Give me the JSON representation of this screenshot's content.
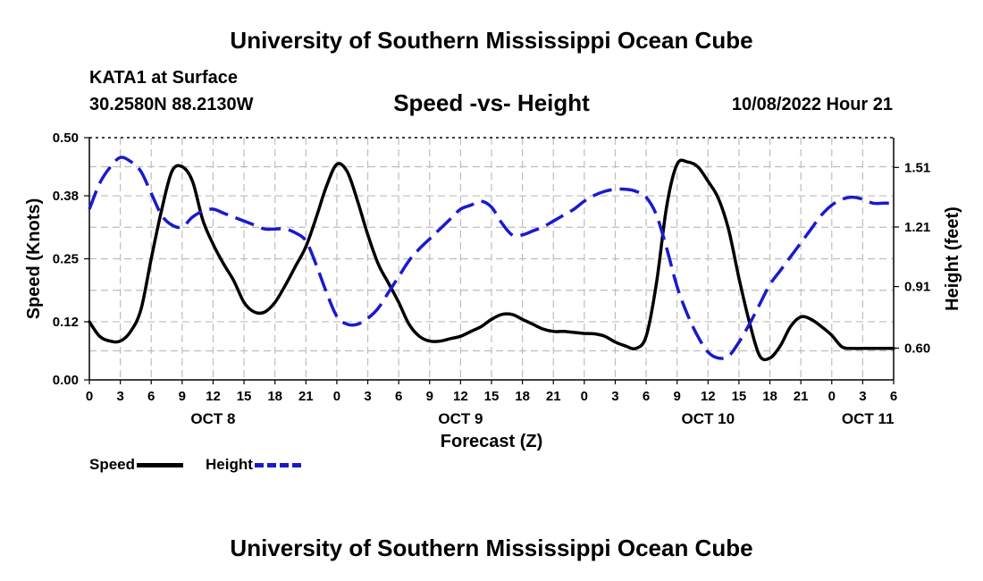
{
  "header": {
    "title": "University of Southern Mississippi Ocean Cube",
    "station": "KATA1 at Surface",
    "coordinates": "30.2580N  88.2130W",
    "subtitle": "Speed -vs- Height",
    "datetime": "10/08/2022 Hour 21"
  },
  "footer": {
    "title": "University of Southern Mississippi Ocean Cube"
  },
  "colors": {
    "speed": "#000000",
    "height": "#1a1acc",
    "grid": "#bdbdbd"
  },
  "legend": {
    "speed_label": "Speed",
    "height_label": "Height"
  },
  "chart_data": {
    "type": "line",
    "title": "Speed -vs- Height",
    "xlabel": "Forecast (Z)",
    "ylabel": "Speed (Knots)",
    "y2label": "Height (feet)",
    "xlim": [
      0,
      78
    ],
    "ylim": [
      0,
      0.5
    ],
    "y2lim": [
      0.44,
      1.66
    ],
    "yticks": [
      "0.00",
      "0.12",
      "0.25",
      "0.38",
      "0.50"
    ],
    "y2ticks": [
      "0.60",
      "0.91",
      "1.21",
      "1.51"
    ],
    "xtick_labels": [
      "0",
      "3",
      "6",
      "9",
      "12",
      "15",
      "18",
      "21",
      "0",
      "3",
      "6",
      "9",
      "12",
      "15",
      "18",
      "21",
      "0",
      "3",
      "6",
      "9",
      "12",
      "15",
      "18",
      "21",
      "0",
      "3",
      "6"
    ],
    "day_labels": [
      {
        "label": "OCT 8",
        "hour": 12
      },
      {
        "label": "OCT 9",
        "hour": 36
      },
      {
        "label": "OCT 10",
        "hour": 60
      },
      {
        "label": "OCT 11",
        "hour": 75.5
      }
    ],
    "series": [
      {
        "name": "Speed",
        "axis": "left",
        "style": "solid",
        "x": [
          0,
          1,
          2,
          3,
          4,
          5,
          6,
          7,
          8,
          9,
          10,
          11,
          12,
          13,
          14,
          15,
          16,
          17,
          18,
          19,
          20,
          21,
          22,
          23,
          24,
          25,
          26,
          27,
          28,
          29,
          30,
          31,
          32,
          33,
          34,
          35,
          36,
          37,
          38,
          39,
          40,
          41,
          42,
          43,
          44,
          45,
          46,
          47,
          48,
          49,
          50,
          51,
          52,
          53,
          54,
          55,
          56,
          57,
          58,
          59,
          60,
          61,
          62,
          63,
          64,
          65,
          66,
          67,
          68,
          69,
          70,
          71,
          72,
          73,
          74,
          75,
          76,
          77,
          78
        ],
        "values": [
          0.12,
          0.09,
          0.08,
          0.08,
          0.1,
          0.145,
          0.25,
          0.35,
          0.43,
          0.44,
          0.41,
          0.33,
          0.28,
          0.24,
          0.205,
          0.16,
          0.14,
          0.14,
          0.16,
          0.195,
          0.235,
          0.275,
          0.335,
          0.4,
          0.445,
          0.43,
          0.37,
          0.3,
          0.24,
          0.2,
          0.16,
          0.115,
          0.09,
          0.08,
          0.08,
          0.085,
          0.09,
          0.1,
          0.11,
          0.125,
          0.135,
          0.135,
          0.125,
          0.115,
          0.105,
          0.1,
          0.1,
          0.098,
          0.096,
          0.095,
          0.09,
          0.078,
          0.07,
          0.065,
          0.09,
          0.2,
          0.36,
          0.445,
          0.45,
          0.44,
          0.41,
          0.375,
          0.31,
          0.21,
          0.12,
          0.05,
          0.045,
          0.07,
          0.11,
          0.13,
          0.125,
          0.11,
          0.092,
          0.068,
          0.065,
          0.065,
          0.065,
          0.065,
          0.065
        ]
      },
      {
        "name": "Height",
        "axis": "right",
        "style": "dashed",
        "x": [
          0,
          1,
          2,
          3,
          4,
          5,
          6,
          7,
          8,
          9,
          10,
          11,
          12,
          13,
          14,
          15,
          16,
          17,
          18,
          19,
          20,
          21,
          22,
          23,
          24,
          25,
          26,
          27,
          28,
          29,
          30,
          31,
          32,
          33,
          34,
          35,
          36,
          37,
          38,
          39,
          40,
          41,
          42,
          43,
          44,
          45,
          46,
          47,
          48,
          49,
          50,
          51,
          52,
          53,
          54,
          55,
          56,
          57,
          58,
          59,
          60,
          61,
          62,
          63,
          64,
          65,
          66,
          67,
          68,
          69,
          70,
          71,
          72,
          73,
          74,
          75,
          76,
          77,
          78
        ],
        "values": [
          1.3,
          1.43,
          1.51,
          1.56,
          1.54,
          1.49,
          1.38,
          1.27,
          1.22,
          1.21,
          1.26,
          1.29,
          1.3,
          1.28,
          1.26,
          1.24,
          1.22,
          1.2,
          1.2,
          1.2,
          1.18,
          1.14,
          1.02,
          0.88,
          0.76,
          0.72,
          0.72,
          0.75,
          0.8,
          0.88,
          0.96,
          1.04,
          1.1,
          1.15,
          1.2,
          1.25,
          1.3,
          1.32,
          1.34,
          1.31,
          1.23,
          1.17,
          1.17,
          1.19,
          1.21,
          1.24,
          1.27,
          1.3,
          1.34,
          1.37,
          1.39,
          1.4,
          1.4,
          1.39,
          1.36,
          1.27,
          1.1,
          0.91,
          0.77,
          0.66,
          0.58,
          0.55,
          0.56,
          0.63,
          0.72,
          0.82,
          0.92,
          0.99,
          1.06,
          1.13,
          1.2,
          1.27,
          1.32,
          1.35,
          1.36,
          1.35,
          1.33,
          1.33,
          1.33
        ]
      }
    ]
  }
}
